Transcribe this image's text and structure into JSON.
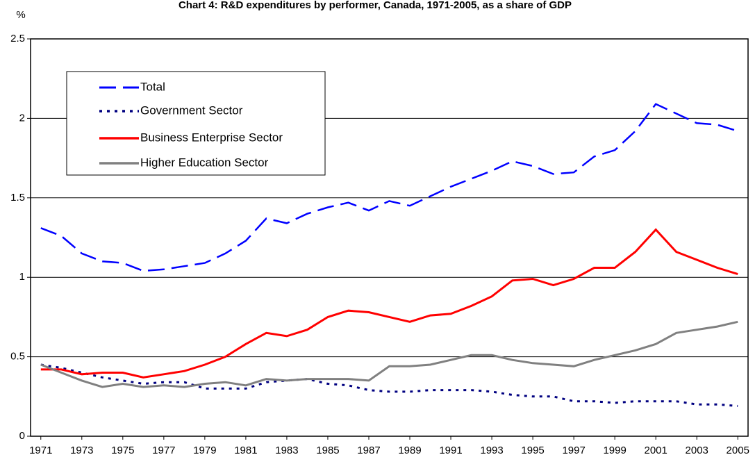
{
  "chart_data": {
    "type": "line",
    "title": "Chart 4: R&D expenditures by performer, Canada, 1971-2005, as a share of GDP",
    "y_label": "%",
    "x": [
      1971,
      1972,
      1973,
      1974,
      1975,
      1976,
      1977,
      1978,
      1979,
      1980,
      1981,
      1982,
      1983,
      1984,
      1985,
      1986,
      1987,
      1988,
      1989,
      1990,
      1991,
      1992,
      1993,
      1994,
      1995,
      1996,
      1997,
      1998,
      1999,
      2000,
      2001,
      2002,
      2003,
      2004,
      2005
    ],
    "xlim": [
      1970.5,
      2005.5
    ],
    "xticks": [
      1971,
      1973,
      1975,
      1977,
      1979,
      1981,
      1983,
      1985,
      1987,
      1989,
      1991,
      1993,
      1995,
      1997,
      1999,
      2001,
      2003,
      2005
    ],
    "ylim": [
      0,
      2.5
    ],
    "yticks": [
      0,
      0.5,
      1,
      1.5,
      2,
      2.5
    ],
    "grid": true,
    "legend": "upper-left",
    "series": [
      {
        "name": "Total",
        "color": "#0000ff",
        "style": "dashed",
        "values": [
          1.31,
          1.26,
          1.15,
          1.1,
          1.09,
          1.04,
          1.05,
          1.07,
          1.09,
          1.15,
          1.23,
          1.37,
          1.34,
          1.4,
          1.44,
          1.47,
          1.42,
          1.48,
          1.45,
          1.51,
          1.57,
          1.62,
          1.67,
          1.73,
          1.7,
          1.65,
          1.66,
          1.76,
          1.8,
          1.92,
          2.09,
          2.03,
          1.97,
          1.96,
          1.92
        ]
      },
      {
        "name": "Government Sector",
        "color": "#000080",
        "style": "dotted",
        "values": [
          0.45,
          0.43,
          0.4,
          0.37,
          0.35,
          0.33,
          0.34,
          0.34,
          0.3,
          0.3,
          0.3,
          0.34,
          0.35,
          0.36,
          0.33,
          0.32,
          0.29,
          0.28,
          0.28,
          0.29,
          0.29,
          0.29,
          0.28,
          0.26,
          0.25,
          0.25,
          0.22,
          0.22,
          0.21,
          0.22,
          0.22,
          0.22,
          0.2,
          0.2,
          0.19
        ]
      },
      {
        "name": "Business Enterprise Sector",
        "color": "#ff0000",
        "style": "solid",
        "values": [
          0.42,
          0.42,
          0.39,
          0.4,
          0.4,
          0.37,
          0.39,
          0.41,
          0.45,
          0.5,
          0.58,
          0.65,
          0.63,
          0.67,
          0.75,
          0.79,
          0.78,
          0.75,
          0.72,
          0.76,
          0.77,
          0.82,
          0.88,
          0.98,
          0.99,
          0.95,
          0.99,
          1.06,
          1.06,
          1.16,
          1.3,
          1.16,
          1.11,
          1.06,
          1.02
        ]
      },
      {
        "name": "Higher Education Sector",
        "color": "#808080",
        "style": "solid",
        "values": [
          0.45,
          0.4,
          0.35,
          0.31,
          0.33,
          0.31,
          0.32,
          0.31,
          0.33,
          0.34,
          0.32,
          0.36,
          0.35,
          0.36,
          0.36,
          0.36,
          0.35,
          0.44,
          0.44,
          0.45,
          0.48,
          0.51,
          0.51,
          0.48,
          0.46,
          0.45,
          0.44,
          0.48,
          0.51,
          0.54,
          0.58,
          0.65,
          0.67,
          0.69,
          0.72
        ]
      }
    ]
  }
}
